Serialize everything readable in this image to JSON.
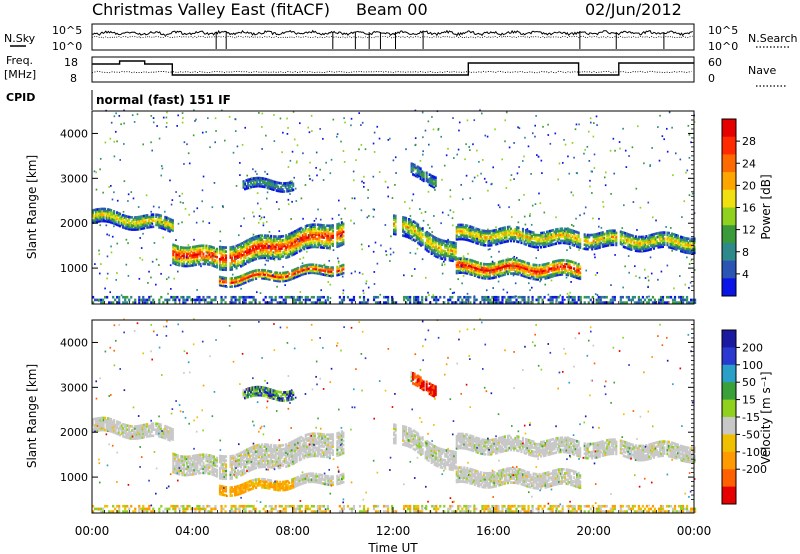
{
  "header": {
    "station": "Christmas Valley East (fitACF)",
    "beam": "Beam 00",
    "date": "02/Jun/2012"
  },
  "noise_panel": {
    "left_label": "N.Sky",
    "right_label": "N.Search",
    "left_ticks": [
      "10^5",
      "10^0"
    ],
    "right_ticks": [
      "10^5",
      "10^0"
    ]
  },
  "freq_panel": {
    "left_label_1": "Freq.",
    "left_label_2": "[MHz]",
    "right_label": "Nave",
    "left_ticks": [
      "18",
      "8"
    ],
    "right_ticks": [
      "60",
      "0"
    ]
  },
  "cpid": {
    "label": "CPID",
    "mode": "normal (fast) 151 IF"
  },
  "chart_data": [
    {
      "type": "heatmap",
      "quantity": "Power",
      "ylabel": "Slant Range [km]",
      "xlabel": "Time UT",
      "ylim": [
        200,
        4500
      ],
      "yticks": [
        "1000",
        "2000",
        "3000",
        "4000"
      ],
      "xticks": [
        "00:00",
        "04:00",
        "08:00",
        "12:00",
        "16:00",
        "20:00",
        "00:00"
      ],
      "colorbar": {
        "label": "Power [dB]",
        "ticks": [
          "4",
          "8",
          "12",
          "16",
          "20",
          "24",
          "28"
        ],
        "colors": [
          "#0a14e6",
          "#2a55b5",
          "#2e8a8a",
          "#3a9a3a",
          "#8fd11e",
          "#f0e010",
          "#ffa500",
          "#ff6a00",
          "#ff2a00",
          "#e60000"
        ]
      },
      "echo_bands": [
        {
          "t0": 0.0,
          "t1": 3.2,
          "r_center": [
            2150,
            1950
          ],
          "width": 300,
          "level": "moderate"
        },
        {
          "t0": 3.2,
          "t1": 5.0,
          "r_center": [
            1350,
            1200
          ],
          "width": 450,
          "level": "strong"
        },
        {
          "t0": 5.0,
          "t1": 10.0,
          "r_center": [
            1200,
            1800
          ],
          "width": 500,
          "level": "strong"
        },
        {
          "t0": 5.0,
          "t1": 10.0,
          "r_center": [
            700,
            1000
          ],
          "width": 200,
          "level": "strong"
        },
        {
          "t0": 6.0,
          "t1": 8.0,
          "r_center": [
            2850,
            2850
          ],
          "width": 200,
          "level": "weak"
        },
        {
          "t0": 12.7,
          "t1": 13.7,
          "r_center": [
            3150,
            2950
          ],
          "width": 250,
          "level": "weak"
        },
        {
          "t0": 12.0,
          "t1": 14.5,
          "r_center": [
            2000,
            1300
          ],
          "width": 450,
          "level": "moderate"
        },
        {
          "t0": 14.5,
          "t1": 24.0,
          "r_center": [
            1750,
            1550
          ],
          "width": 350,
          "level": "moderate"
        },
        {
          "t0": 14.5,
          "t1": 19.5,
          "r_center": [
            1000,
            950
          ],
          "width": 350,
          "level": "strong"
        }
      ]
    },
    {
      "type": "heatmap",
      "quantity": "Velocity",
      "ylabel": "Slant Range [km]",
      "xlabel": "Time UT",
      "ylim": [
        200,
        4500
      ],
      "yticks": [
        "1000",
        "2000",
        "3000",
        "4000"
      ],
      "xticks": [
        "00:00",
        "04:00",
        "08:00",
        "12:00",
        "16:00",
        "20:00",
        "00:00"
      ],
      "colorbar": {
        "label": "Velocity [m s⁻¹]",
        "ticks": [
          "200",
          "100",
          "50",
          "15",
          "-15",
          "-50",
          "-100",
          "-200"
        ],
        "colors": [
          "#1a1aa0",
          "#2a3ad0",
          "#2aa0c8",
          "#3aa03a",
          "#8fd11e",
          "#c8c8c8",
          "#f0c000",
          "#ff9a00",
          "#ff6000",
          "#e60000"
        ]
      }
    }
  ]
}
